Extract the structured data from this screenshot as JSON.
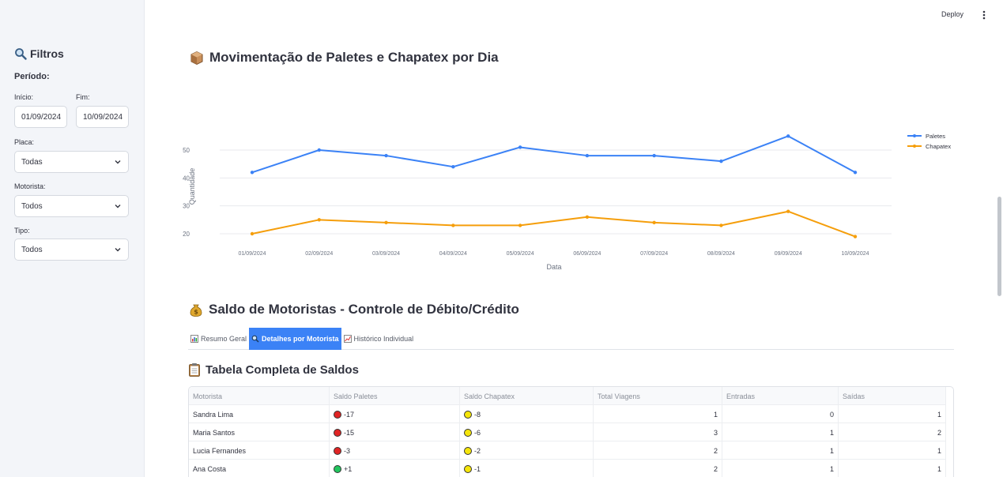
{
  "header": {
    "deploy_label": "Deploy"
  },
  "sidebar": {
    "title": "Filtros",
    "period_label": "Período:",
    "start_label": "Início:",
    "start_value": "01/09/2024",
    "end_label": "Fim:",
    "end_value": "10/09/2024",
    "placa_label": "Placa:",
    "placa_value": "Todas",
    "motorista_label": "Motorista:",
    "motorista_value": "Todos",
    "tipo_label": "Tipo:",
    "tipo_value": "Todos"
  },
  "section1": {
    "title": "Movimentação de Paletes e Chapatex por Dia"
  },
  "chart_data": {
    "type": "line",
    "x": [
      "01/09/2024",
      "02/09/2024",
      "03/09/2024",
      "04/09/2024",
      "05/09/2024",
      "06/09/2024",
      "07/09/2024",
      "08/09/2024",
      "09/09/2024",
      "10/09/2024"
    ],
    "series": [
      {
        "name": "Paletes",
        "values": [
          42,
          50,
          48,
          44,
          51,
          48,
          48,
          46,
          55,
          42
        ],
        "color": "#3b82f6"
      },
      {
        "name": "Chapatex",
        "values": [
          20,
          25,
          24,
          23,
          23,
          26,
          24,
          23,
          28,
          19
        ],
        "color": "#f59e0b"
      }
    ],
    "xlabel": "Data",
    "ylabel": "Quantidade",
    "yticks": [
      20,
      30,
      40,
      50
    ],
    "ylim": [
      15,
      58
    ],
    "grid": true,
    "legend": "top-right"
  },
  "section2": {
    "title": "Saldo de Motoristas - Controle de Débito/Crédito"
  },
  "tabs": [
    {
      "label": "Resumo Geral",
      "icon": "bar-chart-icon"
    },
    {
      "label": "Detalhes por Motorista",
      "icon": "search-icon"
    },
    {
      "label": "Histórico Individual",
      "icon": "trend-chart-icon"
    }
  ],
  "section3": {
    "title": "Tabela Completa de Saldos"
  },
  "table": {
    "columns": [
      "Motorista",
      "Saldo Paletes",
      "Saldo Chapatex",
      "Total Viagens",
      "Entradas",
      "Saídas"
    ],
    "rows": [
      {
        "motorista": "Sandra Lima",
        "paletes": "-17",
        "paletes_color": "#e02424",
        "chapatex": "-8",
        "chapatex_color": "#f5e50a",
        "viagens": "1",
        "entradas": "0",
        "saidas": "1"
      },
      {
        "motorista": "Maria Santos",
        "paletes": "-15",
        "paletes_color": "#e02424",
        "chapatex": "-6",
        "chapatex_color": "#f5e50a",
        "viagens": "3",
        "entradas": "1",
        "saidas": "2"
      },
      {
        "motorista": "Lucia Fernandes",
        "paletes": "-3",
        "paletes_color": "#e02424",
        "chapatex": "-2",
        "chapatex_color": "#f5e50a",
        "viagens": "2",
        "entradas": "1",
        "saidas": "1"
      },
      {
        "motorista": "Ana Costa",
        "paletes": "+1",
        "paletes_color": "#22c55e",
        "chapatex": "-1",
        "chapatex_color": "#f5e50a",
        "viagens": "2",
        "entradas": "1",
        "saidas": "1"
      }
    ]
  }
}
